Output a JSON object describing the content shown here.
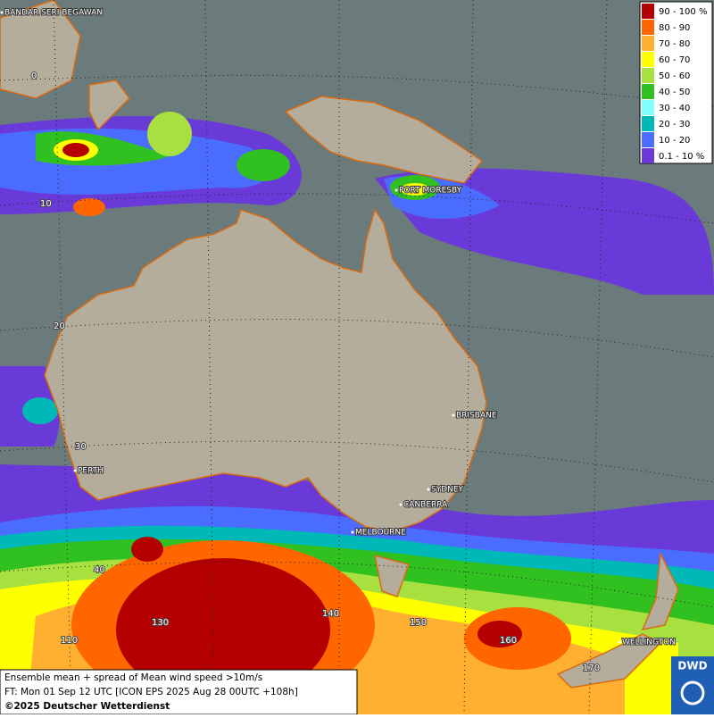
{
  "map": {
    "places": [
      {
        "label": "BANDAR SERI BEGAWAN"
      },
      {
        "label": "PORT MORESBY"
      },
      {
        "label": "BRISBANE"
      },
      {
        "label": "PERTH"
      },
      {
        "label": "SYDNEY"
      },
      {
        "label": "CANBERRA"
      },
      {
        "label": "MELBOURNE"
      },
      {
        "label": "WELLINGTON"
      }
    ],
    "grid_labels": [
      "0",
      "10",
      "20",
      "30",
      "40",
      "110",
      "130",
      "140",
      "150",
      "160",
      "170"
    ]
  },
  "legend": [
    {
      "label": "90 - 100 %",
      "color": "#b40000"
    },
    {
      "label": "80 - 90",
      "color": "#ff6600"
    },
    {
      "label": "70 - 80",
      "color": "#ffb030"
    },
    {
      "label": "60 - 70",
      "color": "#ffff00"
    },
    {
      "label": "50 - 60",
      "color": "#a8e040"
    },
    {
      "label": "40 - 50",
      "color": "#30c020"
    },
    {
      "label": "30 - 40",
      "color": "#80ffff"
    },
    {
      "label": "20 - 30",
      "color": "#00b8b8"
    },
    {
      "label": "10 - 20",
      "color": "#4a6cff"
    },
    {
      "label": "0.1 - 10 %",
      "color": "#6a3ad8"
    }
  ],
  "footer": {
    "lines": [
      "Ensemble mean + spread of Mean wind speed >10m/s",
      "FT: Mon 01 Sep 12 UTC [ICON EPS 2025 Aug 28 00UTC +108h]",
      "©2025 Deutscher Wetterdienst"
    ]
  },
  "logo": {
    "text": "DWD"
  }
}
